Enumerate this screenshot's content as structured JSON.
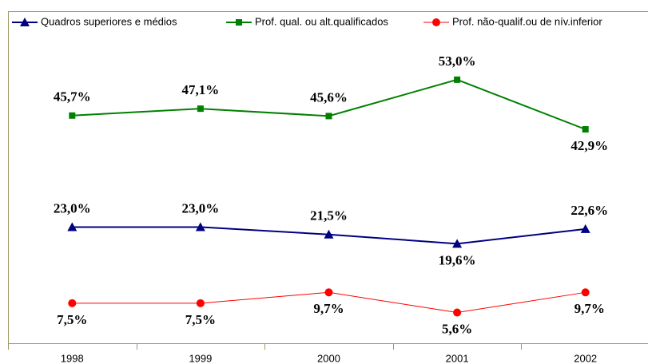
{
  "chart_data": {
    "type": "line",
    "categories": [
      "1998",
      "1999",
      "2000",
      "2001",
      "2002"
    ],
    "ylim": [
      0,
      65
    ],
    "legend": "top",
    "series": [
      {
        "name": "Quadros superiores e médios",
        "color": "#000080",
        "marker": "triangle",
        "values": [
          23.0,
          23.0,
          21.5,
          19.6,
          22.6
        ],
        "value_labels": [
          "23,0%",
          "23,0%",
          "21,5%",
          "19,6%",
          "22,6%"
        ]
      },
      {
        "name": "Prof. qual. ou alt.qualificados",
        "color": "#008000",
        "marker": "square",
        "values": [
          45.7,
          47.1,
          45.6,
          53.0,
          42.9
        ],
        "value_labels": [
          "45,7%",
          "47,1%",
          "45,6%",
          "53,0%",
          "42,9%"
        ]
      },
      {
        "name": "Prof. não-qualif.ou de nív.inferior",
        "color": "#ff0000",
        "marker": "circle",
        "values": [
          7.5,
          7.5,
          9.7,
          5.6,
          9.7
        ],
        "value_labels": [
          "7,5%",
          "7,5%",
          "9,7%",
          "5,6%",
          "9,7%"
        ]
      }
    ]
  }
}
